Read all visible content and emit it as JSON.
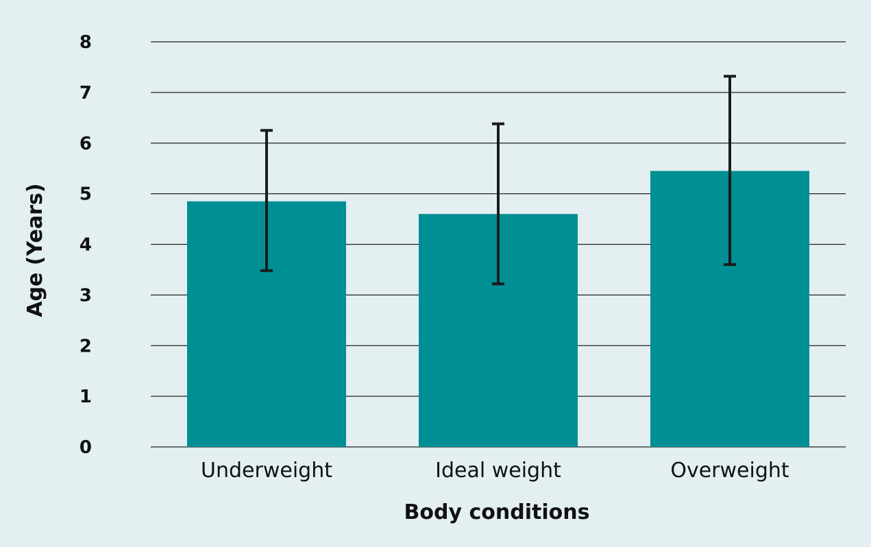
{
  "chart_data": {
    "type": "bar",
    "title": "",
    "xlabel": "Body conditions",
    "ylabel": "Age (Years)",
    "ylim": [
      0,
      8
    ],
    "yticks": [
      0,
      1,
      2,
      3,
      4,
      5,
      6,
      7,
      8
    ],
    "grid": true,
    "categories": [
      "Underweight",
      "Ideal weight",
      "Overweight"
    ],
    "values": [
      4.85,
      4.6,
      5.45
    ],
    "error_low": [
      3.48,
      3.22,
      3.6
    ],
    "error_high": [
      6.25,
      6.38,
      7.32
    ],
    "colors": {
      "bar": "#008f94",
      "background": "#e3eff0",
      "error_bar": "#1b1b1b",
      "grid": "#222222"
    }
  }
}
